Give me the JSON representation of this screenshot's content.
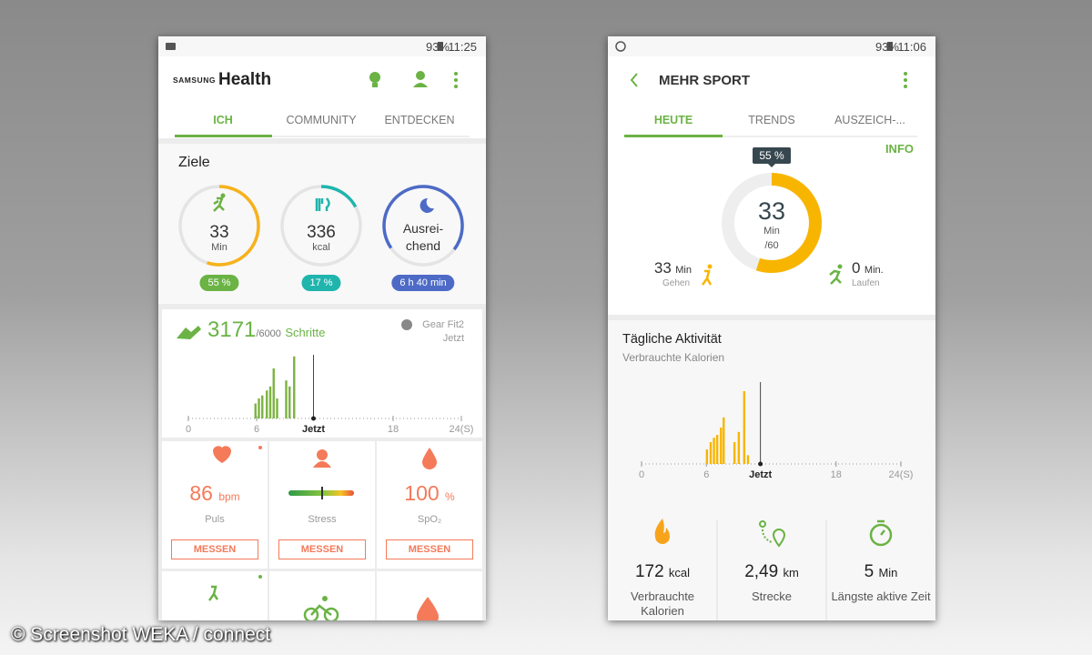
{
  "left": {
    "status": {
      "battery": "93%",
      "time": "11:25"
    },
    "header": {
      "brand": "SAMSUNG",
      "app": "Health"
    },
    "tabs": [
      "ICH",
      "COMMUNITY",
      "ENTDECKEN"
    ],
    "goals": {
      "title": "Ziele",
      "items": [
        {
          "value": "33",
          "unit": "Min",
          "badge": "55 %",
          "progress": 55,
          "color": "#f7b21b",
          "badge_color": "#6ab344"
        },
        {
          "value": "336",
          "unit": "kcal",
          "badge": "17 %",
          "progress": 17,
          "color": "#1fb5ad",
          "badge_color": "#1fb5ad"
        },
        {
          "lines": [
            "Ausrei-",
            "chend"
          ],
          "badge": "6 h 40 min",
          "progress": 70,
          "color": "#4d6bc6",
          "badge_color": "#4d6bc6"
        }
      ]
    },
    "steps": {
      "value": "3171",
      "goal": "/6000",
      "unit": "Schritte",
      "device": "Gear Fit2",
      "time": "Jetzt"
    },
    "steps_chart": {
      "type": "bar",
      "color": "#7cb342",
      "hours": [
        5.9,
        6.2,
        6.5,
        6.9,
        7.2,
        7.5,
        7.8,
        8.6,
        8.9,
        9.3
      ],
      "values": [
        150,
        200,
        230,
        280,
        320,
        500,
        200,
        380,
        320,
        620
      ],
      "xlim": [
        0,
        24
      ],
      "xticks": [
        0,
        6,
        {
          "value": 11,
          "label": "Jetzt"
        },
        18,
        {
          "value": 24,
          "label": "24(S)"
        }
      ]
    },
    "tiles": [
      {
        "value": "86",
        "unit": "bpm",
        "label": "Puls",
        "button": "MESSEN"
      },
      {
        "label": "Stress",
        "button": "MESSEN"
      },
      {
        "value": "100",
        "unit": "%",
        "label": "SpO₂",
        "button": "MESSEN"
      }
    ]
  },
  "right": {
    "status": {
      "battery": "93%",
      "time": "11:06"
    },
    "title": "MEHR SPORT",
    "tabs": [
      "HEUTE",
      "TRENDS",
      "AUSZEICH-..."
    ],
    "info": "INFO",
    "ring": {
      "badge": "55 %",
      "progress": 55,
      "value": "33",
      "unit": "Min",
      "goal": "/60",
      "color": "#f8b500"
    },
    "activities": [
      {
        "value": "33",
        "unit": "Min",
        "label": "Gehen"
      },
      {
        "value": "0",
        "unit": "Min.",
        "label": "Laufen"
      }
    ],
    "chart": {
      "type": "bar",
      "title": "Tägliche Aktivität",
      "subtitle": "Verbrauchte Kalorien",
      "color": "#f8b500",
      "hours": [
        6.05,
        6.4,
        6.7,
        7.0,
        7.35,
        7.6,
        8.6,
        9.0,
        9.5,
        9.85
      ],
      "values": [
        10,
        15,
        18,
        20,
        25,
        32,
        15,
        22,
        50,
        6
      ],
      "xlim": [
        0,
        24
      ],
      "xticks": [
        0,
        6,
        {
          "value": 11,
          "label": "Jetzt"
        },
        18,
        {
          "value": 24,
          "label": "24(S)"
        }
      ]
    },
    "stats": [
      {
        "value": "172",
        "unit": "kcal",
        "label": "Verbrauchte Kalorien"
      },
      {
        "value": "2,49",
        "unit": "km",
        "label": "Strecke"
      },
      {
        "value": "5",
        "unit": "Min",
        "label": "Längste aktive Zeit"
      }
    ]
  },
  "watermark": "© Screenshot WEKA / connect"
}
